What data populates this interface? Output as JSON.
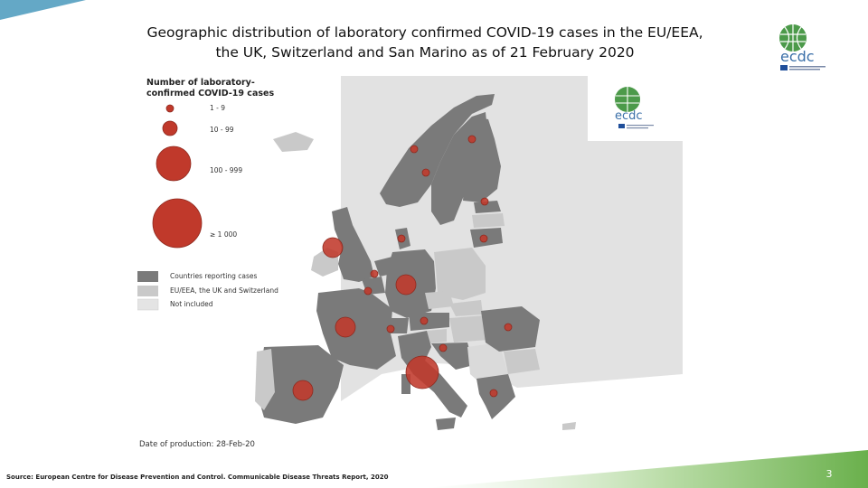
{
  "slide": {
    "title_line1": "Geographic distribution of laboratory confirmed COVID-19 cases in the EU/EEA,",
    "title_line2": "the UK, Switzerland and San Marino as of 21 February 2020",
    "source": "Source: European Centre for Disease Prevention and Control. Communicable Disease Threats Report, 2020",
    "page_number": "3",
    "logo_text": "ecdc",
    "colors": {
      "accent_blue": "#64a8c6",
      "accent_green": "#6ab04c",
      "bubble": "#c0392b"
    }
  },
  "map": {
    "legend": {
      "title": "Number of laboratory-confirmed COVID-19 cases",
      "size_classes": [
        {
          "label": "1 - 9"
        },
        {
          "label": "10 - 99"
        },
        {
          "label": "100 - 999"
        },
        {
          "label": "≥ 1 000"
        }
      ],
      "fill_classes": [
        {
          "label": "Countries reporting cases",
          "color": "#7a7a7a"
        },
        {
          "label": "EU/EEA, the UK and Switzerland",
          "color": "#c9c9c9"
        },
        {
          "label": "Not included",
          "color": "#e4e4e4"
        }
      ]
    },
    "production_date": "Date of production: 28-Feb-20",
    "reporting_countries": [
      "Norway",
      "Sweden",
      "Finland",
      "Estonia",
      "Lithuania",
      "Denmark",
      "United Kingdom",
      "Netherlands",
      "Belgium",
      "Germany",
      "France",
      "Switzerland",
      "Austria",
      "Croatia",
      "Italy",
      "Spain",
      "Romania",
      "Greece"
    ]
  }
}
